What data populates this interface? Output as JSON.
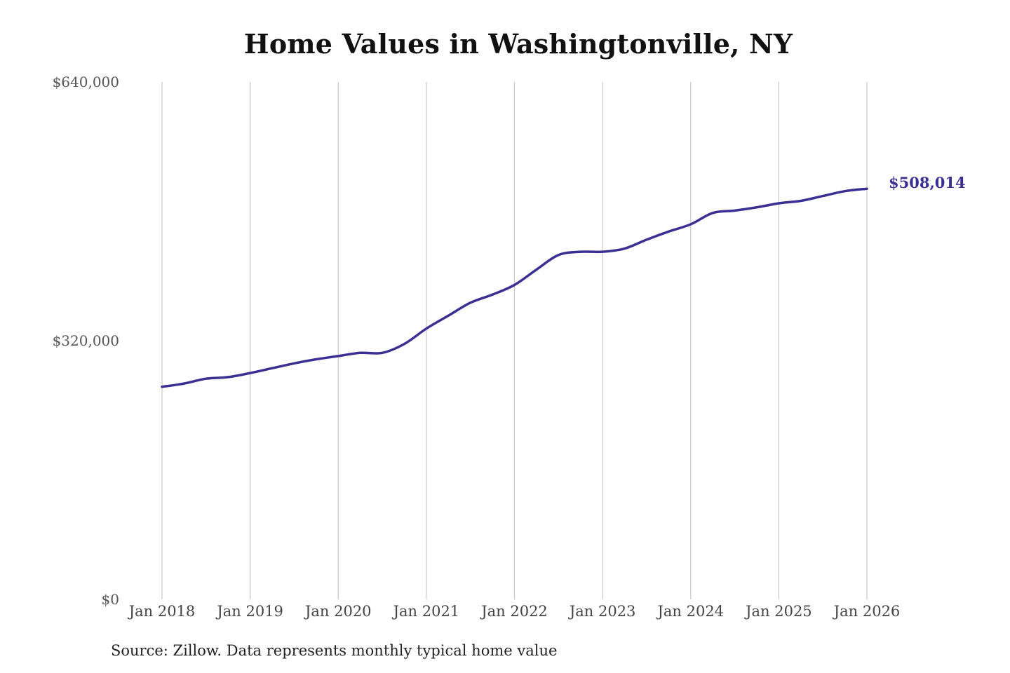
{
  "chart_data": {
    "type": "line",
    "title": "Home Values in Washingtonville, NY",
    "xlabel": "",
    "ylabel": "",
    "x_tick_labels": [
      "Jan 2018",
      "Jan 2019",
      "Jan 2020",
      "Jan 2021",
      "Jan 2022",
      "Jan 2023",
      "Jan 2024",
      "Jan 2025",
      "Jan 2026"
    ],
    "y_tick_labels": [
      "$0",
      "$320,000",
      "$640,000"
    ],
    "y_ticks": [
      0,
      320000,
      640000
    ],
    "ylim": [
      0,
      640000
    ],
    "xlim": [
      "2018-01",
      "2026-01"
    ],
    "grid": "vertical lines at x ticks",
    "legend": "none",
    "line_color": "#3b2f94",
    "series": [
      {
        "values": [
          {
            "x": "2018-01",
            "y": 263000
          },
          {
            "x": "2018-04",
            "y": 267000
          },
          {
            "x": "2018-07",
            "y": 273000
          },
          {
            "x": "2018-10",
            "y": 275000
          },
          {
            "x": "2019-01",
            "y": 280000
          },
          {
            "x": "2019-04",
            "y": 286000
          },
          {
            "x": "2019-07",
            "y": 292000
          },
          {
            "x": "2019-10",
            "y": 297000
          },
          {
            "x": "2020-01",
            "y": 301000
          },
          {
            "x": "2020-04",
            "y": 305000
          },
          {
            "x": "2020-07",
            "y": 305000
          },
          {
            "x": "2020-10",
            "y": 316000
          },
          {
            "x": "2021-01",
            "y": 335000
          },
          {
            "x": "2021-04",
            "y": 351000
          },
          {
            "x": "2021-07",
            "y": 367000
          },
          {
            "x": "2021-10",
            "y": 377000
          },
          {
            "x": "2022-01",
            "y": 389000
          },
          {
            "x": "2022-04",
            "y": 408000
          },
          {
            "x": "2022-07",
            "y": 426000
          },
          {
            "x": "2022-10",
            "y": 430000
          },
          {
            "x": "2023-01",
            "y": 430000
          },
          {
            "x": "2023-04",
            "y": 434000
          },
          {
            "x": "2023-07",
            "y": 445000
          },
          {
            "x": "2023-10",
            "y": 455000
          },
          {
            "x": "2024-01",
            "y": 464000
          },
          {
            "x": "2024-04",
            "y": 478000
          },
          {
            "x": "2024-07",
            "y": 481000
          },
          {
            "x": "2024-10",
            "y": 485000
          },
          {
            "x": "2025-01",
            "y": 490000
          },
          {
            "x": "2025-04",
            "y": 493000
          },
          {
            "x": "2025-07",
            "y": 499000
          },
          {
            "x": "2025-10",
            "y": 505000
          },
          {
            "x": "2026-01",
            "y": 508014
          }
        ]
      }
    ],
    "end_label": "$508,014"
  },
  "source_note": "Source: Zillow. Data represents monthly typical home value"
}
